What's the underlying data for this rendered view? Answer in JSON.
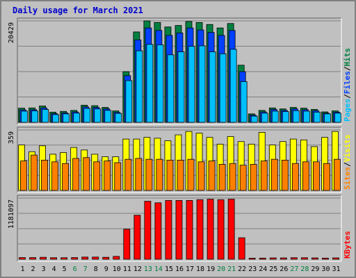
{
  "title": "Daily usage for March 2021",
  "colors": {
    "background": "#c0c0c0",
    "panel": "#c0c0c0",
    "title": "#0000cc",
    "hits": "#008040",
    "files": "#0040ff",
    "pages": "#00c0ff",
    "visits": "#ffff00",
    "sites": "#ff8000",
    "kbytes": "#ff0000",
    "weekend_label": "#008040",
    "weekday_label": "#000000"
  },
  "chart_data": [
    {
      "type": "bar",
      "panel": "hits-files-pages",
      "y_max_label": "20429",
      "ylim": [
        0,
        20429
      ],
      "legend": [
        {
          "label": "Pages",
          "color": "#00c0ff"
        },
        {
          "label": "Files",
          "color": "#0040ff"
        },
        {
          "label": "Hits",
          "color": "#008040"
        }
      ],
      "legend_separator": "/",
      "categories": [
        "1",
        "2",
        "3",
        "4",
        "5",
        "6",
        "7",
        "8",
        "9",
        "10",
        "11",
        "12",
        "13",
        "14",
        "15",
        "16",
        "17",
        "18",
        "19",
        "20",
        "21",
        "22",
        "23",
        "24",
        "25",
        "26",
        "27",
        "28",
        "29",
        "30",
        "31"
      ],
      "series": [
        {
          "name": "Hits",
          "values": [
            2850,
            2900,
            3300,
            2050,
            2200,
            2400,
            3450,
            3350,
            3000,
            2300,
            10200,
            18200,
            20429,
            20100,
            19200,
            19500,
            20300,
            20100,
            19700,
            19000,
            19900,
            11500,
            1700,
            2400,
            2900,
            2700,
            3000,
            2850,
            2600,
            2100,
            2300
          ]
        },
        {
          "name": "Files",
          "values": [
            2500,
            2550,
            2900,
            1750,
            1900,
            2100,
            3100,
            3000,
            2700,
            2000,
            9400,
            16600,
            19000,
            18500,
            17500,
            18000,
            19000,
            18600,
            18100,
            17500,
            18500,
            10200,
            1450,
            2100,
            2600,
            2400,
            2700,
            2550,
            2350,
            1850,
            2050
          ]
        },
        {
          "name": "Pages",
          "values": [
            2250,
            2300,
            2600,
            1550,
            1700,
            1850,
            2800,
            2700,
            2400,
            1800,
            8400,
            14400,
            15700,
            15600,
            13600,
            14200,
            15300,
            15400,
            14200,
            13800,
            14700,
            8200,
            1250,
            1850,
            2250,
            2150,
            2350,
            2250,
            2050,
            1700,
            1850
          ]
        }
      ]
    },
    {
      "type": "bar",
      "panel": "sites-visits",
      "y_max_label": "359",
      "ylim": [
        0,
        359
      ],
      "legend": [
        {
          "label": "Sites",
          "color": "#ff8000"
        },
        {
          "label": "Visits",
          "color": "#ffff00"
        }
      ],
      "legend_separator": "/",
      "categories": [
        "1",
        "2",
        "3",
        "4",
        "5",
        "6",
        "7",
        "8",
        "9",
        "10",
        "11",
        "12",
        "13",
        "14",
        "15",
        "16",
        "17",
        "18",
        "19",
        "20",
        "21",
        "22",
        "23",
        "24",
        "25",
        "26",
        "27",
        "28",
        "29",
        "30",
        "31"
      ],
      "series": [
        {
          "name": "Visits",
          "values": [
            270,
            230,
            265,
            215,
            225,
            255,
            240,
            215,
            200,
            200,
            305,
            305,
            315,
            310,
            295,
            330,
            350,
            340,
            315,
            275,
            320,
            290,
            275,
            345,
            270,
            290,
            305,
            300,
            260,
            315,
            350
          ]
        },
        {
          "name": "Sites",
          "values": [
            175,
            210,
            180,
            170,
            160,
            190,
            195,
            170,
            175,
            165,
            185,
            190,
            185,
            185,
            180,
            180,
            185,
            170,
            175,
            155,
            160,
            150,
            155,
            175,
            185,
            180,
            160,
            170,
            170,
            160,
            185
          ]
        }
      ]
    },
    {
      "type": "bar",
      "panel": "kbytes",
      "y_max_label": "1181097",
      "ylim": [
        0,
        1181097
      ],
      "legend": [
        {
          "label": "KBytes",
          "color": "#ff0000"
        }
      ],
      "categories": [
        "1",
        "2",
        "3",
        "4",
        "5",
        "6",
        "7",
        "8",
        "9",
        "10",
        "11",
        "12",
        "13",
        "14",
        "15",
        "16",
        "17",
        "18",
        "19",
        "20",
        "21",
        "22",
        "23",
        "24",
        "25",
        "26",
        "27",
        "28",
        "29",
        "30",
        "31"
      ],
      "series": [
        {
          "name": "KBytes",
          "values": [
            32000,
            32000,
            38000,
            30000,
            30000,
            32000,
            42000,
            42000,
            38000,
            55000,
            580000,
            850000,
            1120000,
            1090000,
            1135000,
            1135000,
            1135000,
            1150000,
            1160000,
            1150000,
            1160000,
            415000,
            16000,
            22000,
            26000,
            26000,
            30000,
            30000,
            26000,
            22000,
            26000
          ]
        }
      ]
    }
  ],
  "x_labels": [
    {
      "text": "1",
      "weekend": false
    },
    {
      "text": "2",
      "weekend": false
    },
    {
      "text": "3",
      "weekend": false
    },
    {
      "text": "4",
      "weekend": false
    },
    {
      "text": "5",
      "weekend": false
    },
    {
      "text": "6",
      "weekend": true
    },
    {
      "text": "7",
      "weekend": true
    },
    {
      "text": "8",
      "weekend": false
    },
    {
      "text": "9",
      "weekend": false
    },
    {
      "text": "10",
      "weekend": false
    },
    {
      "text": "11",
      "weekend": false
    },
    {
      "text": "12",
      "weekend": false
    },
    {
      "text": "13",
      "weekend": true
    },
    {
      "text": "14",
      "weekend": true
    },
    {
      "text": "15",
      "weekend": false
    },
    {
      "text": "16",
      "weekend": false
    },
    {
      "text": "17",
      "weekend": false
    },
    {
      "text": "18",
      "weekend": false
    },
    {
      "text": "19",
      "weekend": false
    },
    {
      "text": "20",
      "weekend": true
    },
    {
      "text": "21",
      "weekend": true
    },
    {
      "text": "22",
      "weekend": false
    },
    {
      "text": "23",
      "weekend": false
    },
    {
      "text": "24",
      "weekend": false
    },
    {
      "text": "25",
      "weekend": false
    },
    {
      "text": "26",
      "weekend": false
    },
    {
      "text": "27",
      "weekend": true
    },
    {
      "text": "28",
      "weekend": true
    },
    {
      "text": "29",
      "weekend": false
    },
    {
      "text": "30",
      "weekend": false
    },
    {
      "text": "31",
      "weekend": false
    }
  ]
}
